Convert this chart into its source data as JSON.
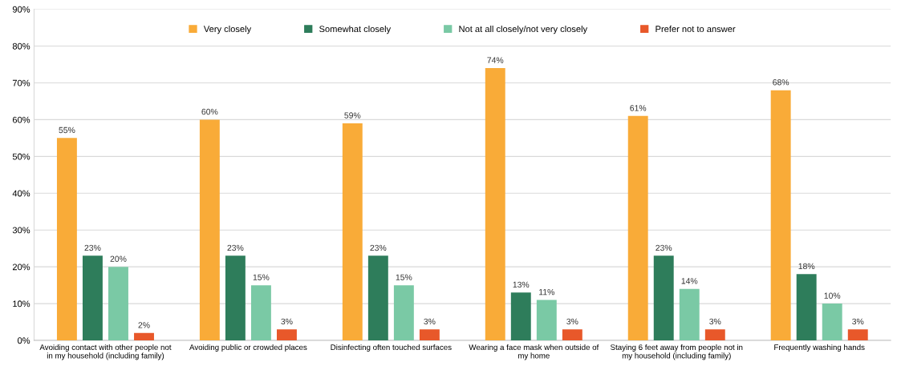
{
  "chart_data": {
    "type": "bar",
    "categories": [
      "Avoiding contact with other people not\nin my household (including family)",
      "Avoiding public or crowded places",
      "Disinfecting often touched surfaces",
      "Wearing a face mask when outside of\nmy home",
      "Staying 6 feet away from people not in\nmy household (including family)",
      "Frequently washing hands"
    ],
    "series": [
      {
        "name": "Very closely",
        "color": "#f9ab38",
        "values": [
          55,
          60,
          59,
          74,
          61,
          68
        ],
        "value_labels": [
          "55%",
          "60%",
          "59%",
          "74%",
          "61%",
          "68%"
        ]
      },
      {
        "name": "Somewhat closely",
        "color": "#2e7d5b",
        "values": [
          23,
          23,
          23,
          13,
          23,
          18
        ],
        "value_labels": [
          "23%",
          "23%",
          "23%",
          "13%",
          "23%",
          "18%"
        ]
      },
      {
        "name": "Not at all closely/not very closely",
        "color": "#7ac9a5",
        "values": [
          20,
          15,
          15,
          11,
          14,
          10
        ],
        "value_labels": [
          "20%",
          "15%",
          "15%",
          "11%",
          "14%",
          "10%"
        ]
      },
      {
        "name": "Prefer not to answer",
        "color": "#e8582a",
        "values": [
          2,
          3,
          3,
          3,
          3,
          3
        ],
        "value_labels": [
          "2%",
          "3%",
          "3%",
          "3%",
          "3%",
          "3%"
        ]
      }
    ],
    "ylim": [
      0,
      90
    ],
    "yticks": [
      {
        "value": 0,
        "label": "0%"
      },
      {
        "value": 10,
        "label": "10%"
      },
      {
        "value": 20,
        "label": "20%"
      },
      {
        "value": 30,
        "label": "30%"
      },
      {
        "value": 40,
        "label": "40%"
      },
      {
        "value": 50,
        "label": "50%"
      },
      {
        "value": 60,
        "label": "60%"
      },
      {
        "value": 70,
        "label": "70%"
      },
      {
        "value": 80,
        "label": "80%"
      },
      {
        "value": 90,
        "label": "90%"
      }
    ],
    "grid": "y",
    "legend": "top"
  }
}
